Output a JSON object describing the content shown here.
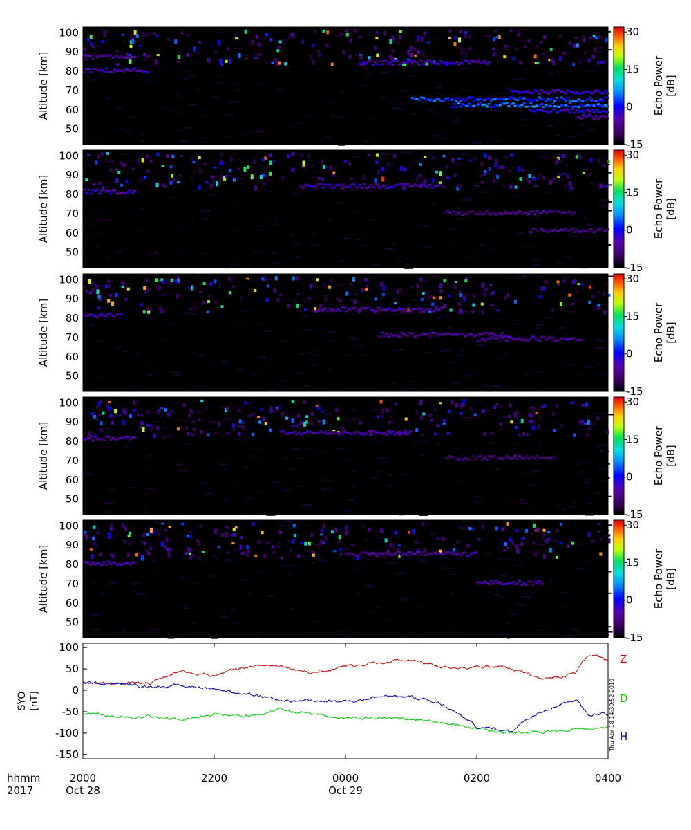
{
  "chart_data": [
    {
      "type": "heatmap",
      "panel": 1,
      "ylabel": "Altitude [km]",
      "yticks": [
        50,
        60,
        70,
        80,
        90,
        100
      ],
      "ylim": [
        42,
        103
      ],
      "xlim_hhmm": [
        "2000",
        "0400"
      ],
      "colorbar": {
        "label": "Echo Power [dB]",
        "ticks": [
          -15,
          0,
          15,
          30
        ],
        "range": [
          -15,
          32
        ]
      },
      "features": [
        {
          "alt_km": 81,
          "t_start_h": 0.0,
          "t_end_h": 1.0,
          "power_db": -5
        },
        {
          "alt_km": 88,
          "t_start_h": 0.0,
          "t_end_h": 0.8,
          "power_db": -6
        },
        {
          "alt_km": 85,
          "t_start_h": 4.2,
          "t_end_h": 6.2,
          "power_db": -5
        },
        {
          "alt_km": 70,
          "t_start_h": 6.5,
          "t_end_h": 8.0,
          "power_db": -3
        },
        {
          "alt_km": 66,
          "t_start_h": 5.0,
          "t_end_h": 8.0,
          "power_db": 2
        },
        {
          "alt_km": 63,
          "t_start_h": 5.6,
          "t_end_h": 8.0,
          "power_db": 4
        },
        {
          "alt_km": 60,
          "t_start_h": 6.8,
          "t_end_h": 8.0,
          "power_db": -2
        },
        {
          "alt_km": 57,
          "t_start_h": 7.5,
          "t_end_h": 8.0,
          "power_db": -6
        }
      ]
    },
    {
      "type": "heatmap",
      "panel": 2,
      "ylabel": "Altitude [km]",
      "yticks": [
        50,
        60,
        70,
        80,
        90,
        100
      ],
      "ylim": [
        42,
        103
      ],
      "colorbar": {
        "label": "Echo Power [dB]",
        "ticks": [
          -15,
          0,
          15,
          30
        ],
        "range": [
          -15,
          32
        ]
      },
      "features": [
        {
          "alt_km": 82,
          "t_start_h": 0.0,
          "t_end_h": 0.8,
          "power_db": -4
        },
        {
          "alt_km": 85,
          "t_start_h": 3.3,
          "t_end_h": 5.5,
          "power_db": -5
        },
        {
          "alt_km": 71,
          "t_start_h": 5.5,
          "t_end_h": 7.5,
          "power_db": -8
        },
        {
          "alt_km": 62,
          "t_start_h": 6.8,
          "t_end_h": 8.0,
          "power_db": -8
        }
      ]
    },
    {
      "type": "heatmap",
      "panel": 3,
      "ylabel": "Altitude [km]",
      "yticks": [
        50,
        60,
        70,
        80,
        90,
        100
      ],
      "ylim": [
        42,
        103
      ],
      "colorbar": {
        "label": "Echo Power [dB]",
        "ticks": [
          -15,
          0,
          15,
          30
        ],
        "range": [
          -15,
          32
        ]
      },
      "features": [
        {
          "alt_km": 82,
          "t_start_h": 0.0,
          "t_end_h": 0.6,
          "power_db": -5
        },
        {
          "alt_km": 85,
          "t_start_h": 3.5,
          "t_end_h": 5.5,
          "power_db": -6
        },
        {
          "alt_km": 72,
          "t_start_h": 4.5,
          "t_end_h": 6.5,
          "power_db": -7
        },
        {
          "alt_km": 70,
          "t_start_h": 6.0,
          "t_end_h": 7.6,
          "power_db": -6
        }
      ]
    },
    {
      "type": "heatmap",
      "panel": 4,
      "ylabel": "Altitude [km]",
      "yticks": [
        50,
        60,
        70,
        80,
        90,
        100
      ],
      "ylim": [
        42,
        103
      ],
      "colorbar": {
        "label": "Echo Power [dB]",
        "ticks": [
          -15,
          0,
          15,
          30
        ],
        "range": [
          -15,
          32
        ]
      },
      "features": [
        {
          "alt_km": 82,
          "t_start_h": 0.0,
          "t_end_h": 0.8,
          "power_db": -6
        },
        {
          "alt_km": 85,
          "t_start_h": 3.0,
          "t_end_h": 5.0,
          "power_db": -5
        },
        {
          "alt_km": 72,
          "t_start_h": 5.5,
          "t_end_h": 7.2,
          "power_db": -9
        }
      ]
    },
    {
      "type": "heatmap",
      "panel": 5,
      "ylabel": "Altitude [km]",
      "yticks": [
        50,
        60,
        70,
        80,
        90,
        100
      ],
      "ylim": [
        42,
        103
      ],
      "colorbar": {
        "label": "Echo Power [dB]",
        "ticks": [
          -15,
          0,
          15,
          30
        ],
        "range": [
          -15,
          32
        ]
      },
      "features": [
        {
          "alt_km": 81,
          "t_start_h": 0.0,
          "t_end_h": 0.8,
          "power_db": -5
        },
        {
          "alt_km": 86,
          "t_start_h": 4.0,
          "t_end_h": 6.0,
          "power_db": -6
        },
        {
          "alt_km": 71,
          "t_start_h": 6.0,
          "t_end_h": 7.0,
          "power_db": -6
        }
      ]
    },
    {
      "type": "line",
      "ylabel": "SYO [nT]",
      "yticks": [
        100,
        50,
        0,
        -50,
        -100,
        -150
      ],
      "ylim": [
        -160,
        110
      ],
      "x_hours_from_2000": [
        0,
        0.5,
        1.0,
        1.5,
        2.0,
        2.5,
        3.0,
        3.5,
        4.0,
        4.5,
        5.0,
        5.5,
        6.0,
        6.5,
        7.0,
        7.5,
        7.7,
        8.0
      ],
      "series": [
        {
          "name": "Z",
          "color": "#d00000",
          "values": [
            18,
            18,
            15,
            45,
            35,
            55,
            60,
            40,
            55,
            65,
            70,
            55,
            55,
            52,
            25,
            40,
            85,
            70
          ]
        },
        {
          "name": "D",
          "color": "#00cc00",
          "values": [
            -57,
            -60,
            -60,
            -70,
            -55,
            -60,
            -45,
            -55,
            -65,
            -65,
            -65,
            -75,
            -90,
            -100,
            -97,
            -90,
            -90,
            -88
          ]
        },
        {
          "name": "H",
          "color": "#0000c0",
          "values": [
            18,
            15,
            10,
            10,
            5,
            -10,
            -25,
            -25,
            -25,
            -15,
            -15,
            -35,
            -85,
            -95,
            -45,
            -20,
            -55,
            -55
          ]
        }
      ],
      "timestamp": "Thu Apr 18 14:39:52 2019"
    }
  ],
  "xaxis": {
    "row1_label": "hhmm",
    "row2_label": "2017",
    "ticks": [
      {
        "t_h": 0,
        "time": "2000",
        "date": "Oct 28"
      },
      {
        "t_h": 2,
        "time": "2200",
        "date": ""
      },
      {
        "t_h": 4,
        "time": "0000",
        "date": "Oct 29"
      },
      {
        "t_h": 6,
        "time": "0200",
        "date": ""
      },
      {
        "t_h": 8,
        "time": "0400",
        "date": ""
      }
    ]
  }
}
